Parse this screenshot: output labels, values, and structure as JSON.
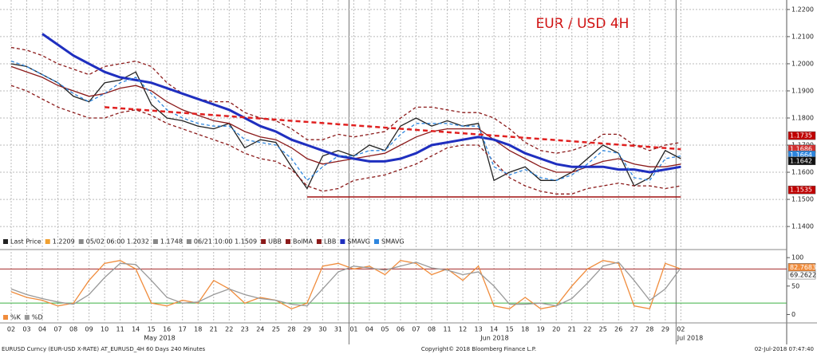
{
  "chart_data": [
    {
      "type": "line",
      "title": "EUR / USD 4H",
      "categories": [
        "02",
        "03",
        "04",
        "07",
        "08",
        "09",
        "10",
        "11",
        "14",
        "15",
        "16",
        "17",
        "18",
        "21",
        "22",
        "23",
        "24",
        "25",
        "28",
        "29",
        "30",
        "31",
        "01",
        "04",
        "05",
        "06",
        "07",
        "08",
        "11",
        "12",
        "13",
        "14",
        "15",
        "18",
        "19",
        "20",
        "21",
        "22",
        "25",
        "26",
        "27",
        "28",
        "29",
        "02"
      ],
      "month_labels": [
        "May 2018",
        "Jun 2018",
        "Jul 2018"
      ],
      "ylim": [
        1.1365,
        1.2235
      ],
      "yticks": [
        {
          "value": 1.14,
          "label": "1.1400"
        },
        {
          "value": 1.15,
          "label": "1.1500"
        },
        {
          "value": 1.16,
          "label": "1.1600"
        },
        {
          "value": 1.17,
          "label": "1.1700"
        },
        {
          "value": 1.18,
          "label": "1.1800"
        },
        {
          "value": 1.19,
          "label": "1.1900"
        },
        {
          "value": 1.2,
          "label": "1.2000"
        },
        {
          "value": 1.21,
          "label": "1.2100"
        },
        {
          "value": 1.22,
          "label": "1.2200"
        }
      ],
      "grid": true,
      "series": [
        {
          "name": "Last Price",
          "color": "#222222",
          "values": [
            1.2,
            1.199,
            1.196,
            1.193,
            1.188,
            1.186,
            1.193,
            1.194,
            1.197,
            1.185,
            1.18,
            1.179,
            1.177,
            1.176,
            1.178,
            1.169,
            1.172,
            1.171,
            1.162,
            1.154,
            1.166,
            1.168,
            1.166,
            1.17,
            1.168,
            1.177,
            1.18,
            1.177,
            1.179,
            1.177,
            1.178,
            1.157,
            1.16,
            1.162,
            1.157,
            1.157,
            1.16,
            1.165,
            1.17,
            1.167,
            1.155,
            1.158,
            1.168,
            1.165
          ]
        },
        {
          "name": "UBB",
          "color": "#8b1a1a",
          "dash": true,
          "values": [
            1.206,
            1.205,
            1.203,
            1.2,
            1.198,
            1.196,
            1.199,
            1.2,
            1.201,
            1.199,
            1.193,
            1.189,
            1.187,
            1.186,
            1.186,
            1.182,
            1.18,
            1.179,
            1.176,
            1.172,
            1.172,
            1.174,
            1.173,
            1.174,
            1.175,
            1.18,
            1.184,
            1.184,
            1.183,
            1.182,
            1.182,
            1.18,
            1.176,
            1.171,
            1.168,
            1.167,
            1.168,
            1.17,
            1.174,
            1.174,
            1.17,
            1.168,
            1.17,
            1.171
          ]
        },
        {
          "name": "BolMA",
          "color": "#8b1a1a",
          "values": [
            1.199,
            1.197,
            1.195,
            1.192,
            1.19,
            1.188,
            1.189,
            1.191,
            1.192,
            1.19,
            1.186,
            1.183,
            1.181,
            1.179,
            1.178,
            1.175,
            1.173,
            1.172,
            1.169,
            1.165,
            1.163,
            1.164,
            1.165,
            1.166,
            1.167,
            1.17,
            1.173,
            1.175,
            1.176,
            1.176,
            1.176,
            1.172,
            1.168,
            1.165,
            1.162,
            1.16,
            1.16,
            1.162,
            1.164,
            1.165,
            1.163,
            1.162,
            1.162,
            1.163
          ]
        },
        {
          "name": "LBB",
          "color": "#8b1a1a",
          "dash": true,
          "values": [
            1.192,
            1.19,
            1.187,
            1.184,
            1.182,
            1.18,
            1.18,
            1.182,
            1.183,
            1.181,
            1.178,
            1.176,
            1.174,
            1.172,
            1.17,
            1.167,
            1.165,
            1.164,
            1.161,
            1.155,
            1.153,
            1.154,
            1.157,
            1.158,
            1.159,
            1.161,
            1.163,
            1.166,
            1.169,
            1.17,
            1.17,
            1.164,
            1.158,
            1.155,
            1.153,
            1.152,
            1.152,
            1.154,
            1.155,
            1.156,
            1.155,
            1.155,
            1.154,
            1.155
          ]
        },
        {
          "name": "SMAVG",
          "color": "#1f2fbf",
          "width": 3,
          "values": [
            null,
            null,
            1.211,
            1.207,
            1.203,
            1.2,
            1.197,
            1.195,
            1.194,
            1.193,
            1.191,
            1.189,
            1.187,
            1.185,
            1.183,
            1.18,
            1.177,
            1.175,
            1.172,
            1.17,
            1.168,
            1.166,
            1.165,
            1.164,
            1.164,
            1.165,
            1.167,
            1.17,
            1.171,
            1.172,
            1.173,
            1.172,
            1.17,
            1.167,
            1.165,
            1.163,
            1.162,
            1.162,
            1.162,
            1.161,
            1.161,
            1.16,
            1.161,
            1.162
          ]
        },
        {
          "name": "SMAVG",
          "color": "#2e86de",
          "dash": true,
          "values": [
            1.201,
            1.199,
            1.196,
            1.193,
            1.189,
            1.186,
            1.189,
            1.193,
            1.195,
            1.189,
            1.183,
            1.18,
            1.178,
            1.177,
            1.177,
            1.172,
            1.171,
            1.17,
            1.165,
            1.157,
            1.162,
            1.166,
            1.166,
            1.168,
            1.168,
            1.174,
            1.178,
            1.178,
            1.178,
            1.177,
            1.177,
            1.162,
            1.159,
            1.161,
            1.158,
            1.157,
            1.159,
            1.163,
            1.168,
            1.167,
            1.158,
            1.157,
            1.165,
            1.166
          ]
        }
      ],
      "legend_extra": [
        "1.2209",
        "05/02 06:00 1.2032",
        "1.1748",
        "06/21 10:00 1.1509"
      ],
      "trend_line": {
        "color": "#e02020",
        "from": [
          6,
          1.184
        ],
        "to": [
          43,
          1.1685
        ]
      },
      "support_line": {
        "color": "#a01010",
        "from": [
          19,
          1.1509
        ],
        "to": [
          43,
          1.1509
        ]
      },
      "price_labels": [
        {
          "value": 1.1735,
          "label": "1.1735",
          "color": "#c00000"
        },
        {
          "value": 1.1686,
          "label": "1.1686",
          "color": "#d03030"
        },
        {
          "value": 1.1664,
          "label": "1.1664",
          "color": "#2e86de"
        },
        {
          "value": 1.1642,
          "label": "1.1642",
          "color": "#111111"
        },
        {
          "value": 1.1535,
          "label": "1.1535",
          "color": "#c00000"
        }
      ],
      "footer": [
        "EURUSD Curncy (EUR-USD X-RATE) AT_EURUSD_4H 60 Days 240 Minutes",
        "Copyright© 2018 Bloomberg Finance L.P.",
        "02-Jul-2018 07:47:40"
      ]
    },
    {
      "type": "line",
      "ylim": [
        -12,
        110
      ],
      "yticks": [
        0,
        50,
        100
      ],
      "levels": [
        {
          "value": 80,
          "color": "#a52a2a"
        },
        {
          "value": 20,
          "color": "#3cb043"
        }
      ],
      "series": [
        {
          "name": "%K",
          "color": "#f08c3c",
          "values": [
            40,
            30,
            25,
            15,
            20,
            60,
            90,
            95,
            80,
            20,
            15,
            25,
            20,
            60,
            45,
            20,
            30,
            25,
            10,
            20,
            85,
            90,
            80,
            85,
            70,
            95,
            90,
            70,
            80,
            60,
            85,
            15,
            10,
            30,
            10,
            15,
            50,
            80,
            95,
            90,
            15,
            10,
            90,
            80
          ]
        },
        {
          "name": "%D",
          "color": "#999999",
          "values": [
            45,
            35,
            28,
            22,
            18,
            35,
            65,
            90,
            88,
            60,
            30,
            20,
            22,
            35,
            45,
            35,
            28,
            25,
            18,
            15,
            45,
            75,
            85,
            82,
            78,
            85,
            92,
            82,
            78,
            70,
            75,
            50,
            18,
            18,
            20,
            15,
            28,
            55,
            85,
            92,
            60,
            25,
            45,
            82
          ]
        }
      ],
      "value_labels": [
        {
          "value": 82.7683,
          "label": "82.7683",
          "color": "#f08c3c"
        },
        {
          "value": 69.2622,
          "label": "69.2622",
          "color": "#ffffff"
        }
      ]
    }
  ]
}
